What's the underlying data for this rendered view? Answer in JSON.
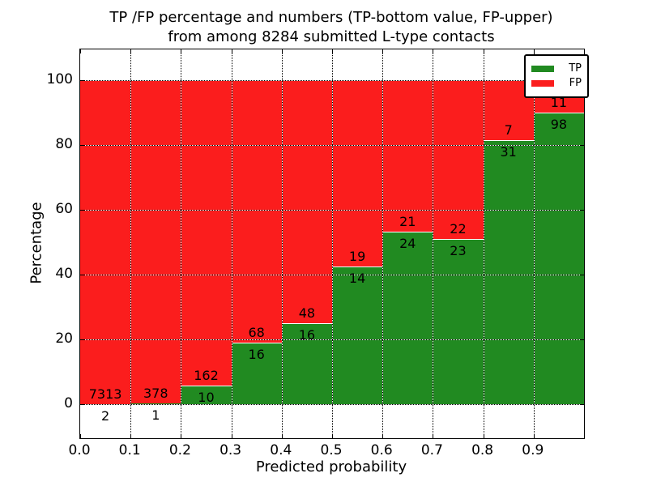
{
  "title": {
    "line1": "TP /FP percentage and numbers (TP-bottom value, FP-upper)",
    "line2": "from among 8284 submitted L-type contacts"
  },
  "chart_data": {
    "type": "bar",
    "stacked": true,
    "title": "TP /FP percentage and numbers (TP-bottom value, FP-upper) from among 8284 submitted L-type contacts",
    "total_submitted_contacts": 8284,
    "xlabel": "Predicted probability",
    "ylabel": "Percentage",
    "x_tick_labels": [
      "0.0",
      "0.1",
      "0.2",
      "0.3",
      "0.4",
      "0.5",
      "0.6",
      "0.7",
      "0.8",
      "0.9"
    ],
    "y_ticks": [
      0,
      20,
      40,
      60,
      80,
      100
    ],
    "xlim": [
      0.0,
      1.0
    ],
    "ylim": [
      -10.5,
      109.5
    ],
    "bin_width": 0.1,
    "grid": true,
    "annotation_note": "TP count below segment boundary, FP count above segment boundary; bars normalized to 100%",
    "legend": {
      "position": "upper right",
      "entries": [
        {
          "name": "TP",
          "color": "#218a21"
        },
        {
          "name": "FP",
          "color": "#fb1d1d"
        }
      ]
    },
    "bars": [
      {
        "bin": "0.0-0.1",
        "tp": 2,
        "fp": 7313
      },
      {
        "bin": "0.1-0.2",
        "tp": 1,
        "fp": 378
      },
      {
        "bin": "0.2-0.3",
        "tp": 10,
        "fp": 162
      },
      {
        "bin": "0.3-0.4",
        "tp": 16,
        "fp": 68
      },
      {
        "bin": "0.4-0.5",
        "tp": 16,
        "fp": 48
      },
      {
        "bin": "0.5-0.6",
        "tp": 14,
        "fp": 19
      },
      {
        "bin": "0.6-0.7",
        "tp": 24,
        "fp": 21
      },
      {
        "bin": "0.7-0.8",
        "tp": 23,
        "fp": 22
      },
      {
        "bin": "0.8-0.9",
        "tp": 31,
        "fp": 7
      },
      {
        "bin": "0.9-1.0",
        "tp": 98,
        "fp": 11
      }
    ]
  },
  "colors": {
    "tp": "#218a21",
    "fp": "#fb1d1d",
    "background": "#ffffff",
    "axis": "#000000"
  }
}
